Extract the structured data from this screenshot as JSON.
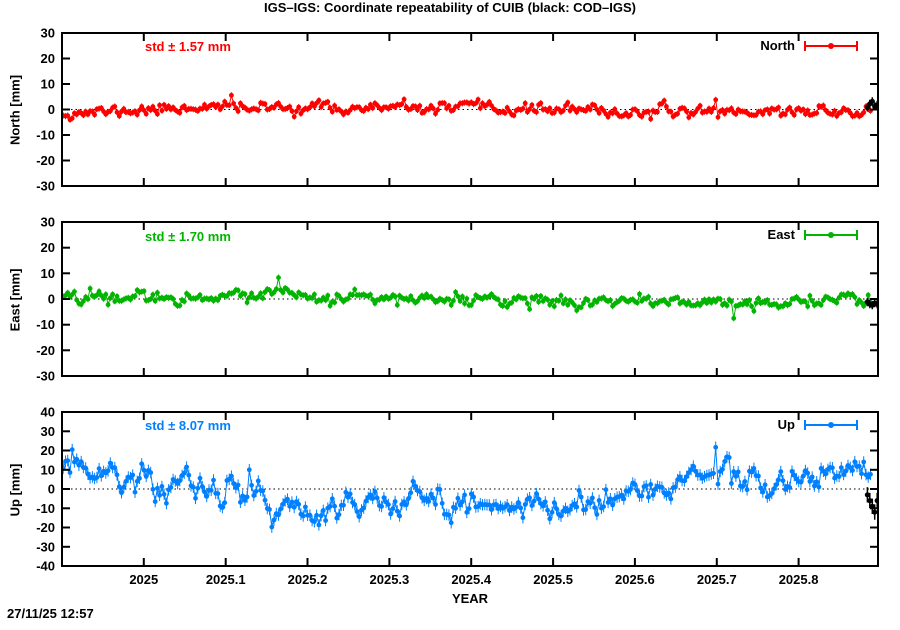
{
  "title": "IGS–IGS: Coordinate repeatability of CUIB (black: COD–IGS)",
  "timestamp": "27/11/25 12:57",
  "chart_data": {
    "type": "scatter",
    "title": "IGS–IGS: Coordinate repeatability of CUIB (black: COD–IGS)",
    "xlabel": "YEAR",
    "grid": "zero-dotted-line-only",
    "legend_position": "top-right-inside",
    "x": {
      "min": 2024.9,
      "max": 2025.897,
      "data_end": 2025.888,
      "ticks": [
        2025,
        2025.1,
        2025.2,
        2025.3,
        2025.4,
        2025.5,
        2025.6,
        2025.7,
        2025.8
      ],
      "tick_labels": [
        "2025",
        "2025.1",
        "2025.2",
        "2025.3",
        "2025.4",
        "2025.5",
        "2025.6",
        "2025.7",
        "2025.8"
      ],
      "step_days": 1
    },
    "panels": [
      {
        "name": "north",
        "legend_label": "North",
        "std_label": "std ± 1.57 mm",
        "std_mm": 1.57,
        "ylabel": "North [mm]",
        "ylim": [
          -30,
          30
        ],
        "yticks": [
          -30,
          -20,
          -10,
          0,
          10,
          20,
          30
        ],
        "color": "#ff0000",
        "seed": 11,
        "noise_mm": 1.05,
        "ar": 0.45,
        "ebar_mm": 1.2,
        "anchors": [
          [
            2024.9,
            -1.2
          ],
          [
            2024.95,
            -1.0
          ],
          [
            2025.0,
            -0.3
          ],
          [
            2025.05,
            0.8
          ],
          [
            2025.1,
            0.8
          ],
          [
            2025.15,
            0.5
          ],
          [
            2025.2,
            0.8
          ],
          [
            2025.25,
            0.3
          ],
          [
            2025.3,
            0.5
          ],
          [
            2025.35,
            0.3
          ],
          [
            2025.4,
            0.5
          ],
          [
            2025.45,
            0.0
          ],
          [
            2025.5,
            0.2
          ],
          [
            2025.55,
            -0.8
          ],
          [
            2025.6,
            -1.2
          ],
          [
            2025.65,
            -0.8
          ],
          [
            2025.7,
            -0.5
          ],
          [
            2025.75,
            -1.0
          ],
          [
            2025.8,
            -0.5
          ],
          [
            2025.85,
            -0.8
          ],
          [
            2025.9,
            -0.5
          ]
        ],
        "spikes": [
          [
            2025.075,
            3.5
          ],
          [
            2025.108,
            4.0
          ],
          [
            2025.205,
            3.0
          ],
          [
            2025.7,
            6.5
          ]
        ],
        "black_series": {
          "label": "COD–IGS",
          "color": "#000000",
          "ebar_mm": 1.6,
          "points": [
            [
              2025.884,
              0.8
            ],
            [
              2025.887,
              2.2
            ],
            [
              2025.89,
              3.2
            ],
            [
              2025.893,
              1.2
            ],
            [
              2025.896,
              1.8
            ]
          ]
        }
      },
      {
        "name": "east",
        "legend_label": "East",
        "std_label": "std ± 1.70 mm",
        "std_mm": 1.7,
        "ylabel": "East [mm]",
        "ylim": [
          -30,
          30
        ],
        "yticks": [
          -30,
          -20,
          -10,
          0,
          10,
          20,
          30
        ],
        "color": "#00b400",
        "seed": 22,
        "noise_mm": 1.15,
        "ar": 0.45,
        "ebar_mm": 1.2,
        "anchors": [
          [
            2024.9,
            0.8
          ],
          [
            2024.95,
            1.0
          ],
          [
            2025.0,
            1.2
          ],
          [
            2025.05,
            1.0
          ],
          [
            2025.1,
            1.3
          ],
          [
            2025.15,
            1.5
          ],
          [
            2025.2,
            1.2
          ],
          [
            2025.25,
            1.0
          ],
          [
            2025.3,
            0.2
          ],
          [
            2025.35,
            -0.3
          ],
          [
            2025.4,
            -0.5
          ],
          [
            2025.45,
            -0.8
          ],
          [
            2025.5,
            -1.0
          ],
          [
            2025.55,
            -1.2
          ],
          [
            2025.6,
            -0.8
          ],
          [
            2025.65,
            -0.8
          ],
          [
            2025.7,
            -1.0
          ],
          [
            2025.75,
            -1.5
          ],
          [
            2025.8,
            -0.8
          ],
          [
            2025.85,
            -0.5
          ],
          [
            2025.9,
            -0.3
          ]
        ],
        "spikes": [
          [
            2025.165,
            3.0
          ],
          [
            2025.31,
            -4.0
          ],
          [
            2025.47,
            -3.0
          ],
          [
            2025.72,
            -5.0
          ]
        ],
        "black_series": {
          "label": "COD–IGS",
          "color": "#000000",
          "ebar_mm": 1.6,
          "points": [
            [
              2025.884,
              -1.2
            ],
            [
              2025.887,
              -2.0
            ],
            [
              2025.89,
              -2.4
            ],
            [
              2025.893,
              -1.6
            ],
            [
              2025.896,
              -2.0
            ]
          ]
        }
      },
      {
        "name": "up",
        "legend_label": "Up",
        "std_label": "std ± 8.07 mm",
        "std_mm": 8.07,
        "ylabel": "Up [mm]",
        "ylim": [
          -40,
          40
        ],
        "yticks": [
          -40,
          -30,
          -20,
          -10,
          0,
          10,
          20,
          30,
          40
        ],
        "color": "#0080ff",
        "seed": 33,
        "noise_mm": 3.4,
        "ar": 0.5,
        "ebar_mm": 3.0,
        "anchors": [
          [
            2024.9,
            11
          ],
          [
            2024.92,
            12
          ],
          [
            2024.95,
            7
          ],
          [
            2024.98,
            5
          ],
          [
            2025.0,
            4
          ],
          [
            2025.03,
            2
          ],
          [
            2025.06,
            3
          ],
          [
            2025.09,
            -1
          ],
          [
            2025.12,
            -3
          ],
          [
            2025.15,
            -6
          ],
          [
            2025.18,
            -9
          ],
          [
            2025.21,
            -10
          ],
          [
            2025.24,
            -8
          ],
          [
            2025.27,
            -9
          ],
          [
            2025.3,
            -8
          ],
          [
            2025.33,
            -9
          ],
          [
            2025.36,
            -7
          ],
          [
            2025.39,
            -9
          ],
          [
            2025.42,
            -8
          ],
          [
            2025.45,
            -7
          ],
          [
            2025.48,
            -9
          ],
          [
            2025.51,
            -10
          ],
          [
            2025.54,
            -7
          ],
          [
            2025.57,
            -4
          ],
          [
            2025.6,
            -1
          ],
          [
            2025.63,
            2
          ],
          [
            2025.66,
            5
          ],
          [
            2025.69,
            7
          ],
          [
            2025.71,
            9
          ],
          [
            2025.73,
            5
          ],
          [
            2025.75,
            7
          ],
          [
            2025.77,
            4
          ],
          [
            2025.79,
            2
          ],
          [
            2025.81,
            3
          ],
          [
            2025.83,
            6
          ],
          [
            2025.85,
            7
          ],
          [
            2025.87,
            9
          ],
          [
            2025.89,
            11
          ]
        ],
        "spikes": [
          [
            2024.912,
            8
          ],
          [
            2025.13,
            9
          ],
          [
            2025.155,
            -8
          ],
          [
            2025.7,
            12
          ],
          [
            2025.76,
            6
          ]
        ],
        "black_series": {
          "label": "COD–IGS",
          "color": "#000000",
          "ebar_mm": 4.0,
          "points": [
            [
              2025.884,
              -3
            ],
            [
              2025.887,
              -6
            ],
            [
              2025.89,
              -9
            ],
            [
              2025.893,
              -12
            ],
            [
              2025.896,
              -6
            ]
          ]
        }
      }
    ]
  }
}
